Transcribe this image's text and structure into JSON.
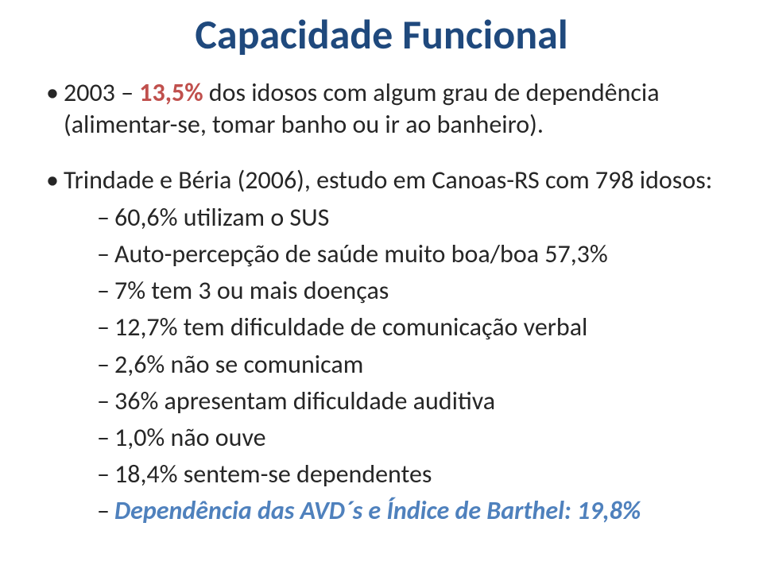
{
  "title": {
    "text": "Capacidade Funcional",
    "color": "#1f497d",
    "fontsize": 52
  },
  "body": {
    "fontsize": 32,
    "accent_color": "#c0504d",
    "blue_color": "#4f81bd",
    "text_color": "#262626"
  },
  "bullet1": {
    "prefix": "2003 – ",
    "stat": "13,5%",
    "rest": " dos idosos com algum grau de dependência (alimentar-se, tomar banho ou ir ao banheiro)."
  },
  "bullet2": {
    "line": "Trindade e Béria (2006), estudo em Canoas-RS com 798 idosos:",
    "sub": [
      "60,6% utilizam o SUS",
      "Auto-percepção de saúde muito boa/boa 57,3%",
      "7% tem 3 ou mais doenças",
      "12,7% tem dificuldade de comunicação verbal",
      "2,6% não se comunicam",
      "36% apresentam dificuldade auditiva",
      "1,0% não ouve",
      "18,4% sentem-se dependentes"
    ],
    "last": "Dependência das AVD´s e Índice de Barthel: 19,8%"
  }
}
